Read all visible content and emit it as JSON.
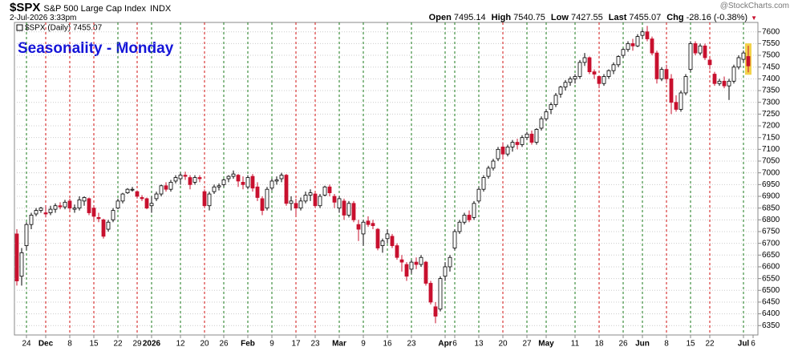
{
  "header": {
    "symbol": "$SPX",
    "name": "S&P 500 Large Cap Index",
    "exchange": "INDX",
    "date": "2-Jul-2026 3:33pm",
    "quote": [
      {
        "label": "Open",
        "value": "7495.14"
      },
      {
        "label": "High",
        "value": "7540.75"
      },
      {
        "label": "Low",
        "value": "7427.55"
      },
      {
        "label": "Last",
        "value": "7455.07"
      },
      {
        "label": "Chg",
        "value": "-28.16 (-0.38%)"
      }
    ],
    "watermark": "@StockCharts.com"
  },
  "chart_data": {
    "type": "candlestick",
    "legend": "$SPX (Daily) 7455.07",
    "annotation": "Seasonality - Monday",
    "up_color": "#ffffff",
    "down_color": "#c8102e",
    "up_line_color": "#1a7a1a",
    "down_line_color": "#d01010",
    "highlight_color": "#f2d24a",
    "grid": true,
    "ylim": [
      6310,
      7640
    ],
    "yticks": [
      6350,
      6400,
      6450,
      6500,
      6550,
      6600,
      6650,
      6700,
      6750,
      6800,
      6850,
      6900,
      6950,
      7000,
      7050,
      7100,
      7150,
      7200,
      7250,
      7300,
      7350,
      7400,
      7450,
      7500,
      7550,
      7600
    ],
    "categories": [
      null,
      null,
      "24",
      null,
      null,
      null,
      "Dec",
      null,
      null,
      null,
      null,
      "8",
      null,
      null,
      null,
      null,
      "15",
      null,
      null,
      null,
      null,
      "22",
      null,
      null,
      null,
      "29",
      null,
      null,
      "2026",
      null,
      null,
      null,
      null,
      null,
      "12",
      null,
      null,
      null,
      null,
      "20",
      null,
      null,
      null,
      "26",
      null,
      null,
      null,
      null,
      "Feb",
      null,
      null,
      null,
      null,
      "9",
      null,
      null,
      null,
      null,
      "17",
      null,
      null,
      null,
      "23",
      null,
      null,
      null,
      null,
      "Mar",
      null,
      null,
      null,
      null,
      "9",
      null,
      null,
      null,
      null,
      "16",
      null,
      null,
      null,
      null,
      "23",
      null,
      null,
      null,
      null,
      null,
      null,
      "Apr",
      null,
      "6",
      null,
      null,
      null,
      null,
      "13",
      null,
      null,
      null,
      null,
      "20",
      null,
      null,
      null,
      null,
      "27",
      null,
      null,
      null,
      "May",
      null,
      null,
      null,
      null,
      null,
      "11",
      null,
      null,
      null,
      null,
      "18",
      null,
      null,
      null,
      null,
      "26",
      null,
      null,
      null,
      "Jun",
      null,
      null,
      null,
      null,
      "8",
      null,
      null,
      null,
      null,
      "15",
      null,
      null,
      null,
      "22",
      null,
      null,
      null,
      null,
      null,
      null,
      "Jul",
      null,
      "6"
    ],
    "open": [
      6740,
      6560,
      6690,
      6780,
      6825,
      6840,
      6830,
      6830,
      6845,
      6860,
      6855,
      6880,
      6845,
      6850,
      6880,
      6890,
      6850,
      6810,
      6800,
      6760,
      6800,
      6850,
      6880,
      6915,
      6930,
      6920,
      6895,
      6890,
      6860,
      6890,
      6910,
      6945,
      6930,
      6965,
      6975,
      6990,
      6980,
      6960,
      6980,
      6920,
      6860,
      6920,
      6940,
      6950,
      6975,
      6985,
      6990,
      6960,
      6940,
      6985,
      6940,
      6890,
      6850,
      6935,
      6965,
      6975,
      6990,
      6870,
      6870,
      6850,
      6880,
      6905,
      6910,
      6860,
      6905,
      6940,
      6900,
      6850,
      6880,
      6820,
      6870,
      6780,
      6740,
      6795,
      6785,
      6760,
      6690,
      6720,
      6730,
      6690,
      6630,
      6610,
      6590,
      6620,
      6610,
      6620,
      6530,
      6430,
      6420,
      6560,
      6600,
      6680,
      6750,
      6790,
      6820,
      6810,
      6880,
      6930,
      6985,
      7020,
      7060,
      7110,
      7080,
      7110,
      7130,
      7120,
      7150,
      7165,
      7130,
      7190,
      7230,
      7270,
      7290,
      7335,
      7365,
      7385,
      7400,
      7410,
      7470,
      7490,
      7430,
      7410,
      7380,
      7410,
      7435,
      7460,
      7500,
      7525,
      7550,
      7540,
      7585,
      7600,
      7570,
      7510,
      7400,
      7440,
      7400,
      7300,
      7270,
      7340,
      7440,
      7550,
      7510,
      7540,
      7480,
      7420,
      7380,
      7390,
      7370,
      7390,
      7450,
      7483,
      7495.14,
      null
    ],
    "high": [
      6760,
      6680,
      6790,
      6830,
      6850,
      6855,
      6860,
      6860,
      6870,
      6875,
      6885,
      6890,
      6865,
      6900,
      6900,
      6895,
      6860,
      6830,
      6805,
      6800,
      6850,
      6890,
      6915,
      6935,
      6940,
      6925,
      6905,
      6895,
      6900,
      6920,
      6950,
      6960,
      6970,
      6990,
      7000,
      7005,
      6990,
      6990,
      6990,
      6930,
      6920,
      6950,
      6955,
      6975,
      6990,
      7010,
      6995,
      6985,
      6990,
      6995,
      6960,
      6900,
      6940,
      6975,
      6985,
      7000,
      6995,
      6900,
      6890,
      6895,
      6920,
      6930,
      6915,
      6910,
      6945,
      6950,
      6910,
      6900,
      6890,
      6880,
      6880,
      6800,
      6800,
      6815,
      6800,
      6765,
      6720,
      6760,
      6740,
      6700,
      6650,
      6620,
      6630,
      6640,
      6650,
      6625,
      6540,
      6450,
      6560,
      6620,
      6650,
      6760,
      6800,
      6830,
      6840,
      6880,
      6940,
      6990,
      7030,
      7060,
      7110,
      7130,
      7120,
      7140,
      7145,
      7160,
      7175,
      7180,
      7190,
      7240,
      7270,
      7300,
      7340,
      7370,
      7395,
      7410,
      7420,
      7480,
      7510,
      7495,
      7440,
      7415,
      7420,
      7440,
      7470,
      7500,
      7530,
      7560,
      7570,
      7590,
      7610,
      7625,
      7580,
      7520,
      7450,
      7460,
      7420,
      7330,
      7350,
      7420,
      7560,
      7560,
      7550,
      7550,
      7490,
      7430,
      7400,
      7410,
      7400,
      7460,
      7500,
      7520,
      7540.75,
      null
    ],
    "low": [
      6520,
      6520,
      6670,
      6760,
      6815,
      6830,
      6810,
      6820,
      6830,
      6845,
      6845,
      6840,
      6830,
      6840,
      6860,
      6820,
      6800,
      6790,
      6720,
      6750,
      6790,
      6845,
      6870,
      6910,
      6920,
      6890,
      6880,
      6845,
      6830,
      6880,
      6900,
      6920,
      6920,
      6955,
      6950,
      6970,
      6930,
      6950,
      6960,
      6850,
      6840,
      6910,
      6925,
      6940,
      6960,
      6975,
      6940,
      6930,
      6930,
      6920,
      6880,
      6820,
      6840,
      6925,
      6950,
      6960,
      6860,
      6840,
      6820,
      6840,
      6870,
      6880,
      6850,
      6850,
      6900,
      6900,
      6850,
      6830,
      6800,
      6810,
      6790,
      6710,
      6690,
      6770,
      6760,
      6670,
      6660,
      6700,
      6680,
      6630,
      6580,
      6540,
      6570,
      6590,
      6600,
      6520,
      6440,
      6360,
      6410,
      6540,
      6580,
      6670,
      6740,
      6780,
      6790,
      6800,
      6870,
      6920,
      6975,
      7010,
      7050,
      7060,
      7070,
      7090,
      7100,
      7110,
      7140,
      7120,
      7120,
      7180,
      7220,
      7250,
      7280,
      7320,
      7350,
      7370,
      7380,
      7400,
      7455,
      7420,
      7400,
      7360,
      7370,
      7400,
      7420,
      7450,
      7490,
      7515,
      7520,
      7535,
      7570,
      7560,
      7500,
      7380,
      7390,
      7380,
      7250,
      7260,
      7260,
      7330,
      7430,
      7500,
      7500,
      7480,
      7440,
      7370,
      7370,
      7360,
      7310,
      7380,
      7440,
      7470,
      7427.55,
      null
    ],
    "close": [
      6540,
      6660,
      6780,
      6820,
      6840,
      6850,
      6825,
      6845,
      6860,
      6855,
      6875,
      6850,
      6850,
      6885,
      6895,
      6830,
      6815,
      6805,
      6730,
      6790,
      6840,
      6880,
      6910,
      6930,
      6930,
      6900,
      6890,
      6850,
      6870,
      6910,
      6945,
      6930,
      6960,
      6980,
      6990,
      6985,
      6950,
      6980,
      6975,
      6860,
      6910,
      6940,
      6945,
      6970,
      6985,
      6995,
      6965,
      6950,
      6980,
      6935,
      6895,
      6840,
      6930,
      6965,
      6970,
      6990,
      6870,
      6880,
      6850,
      6880,
      6905,
      6915,
      6860,
      6900,
      6940,
      6915,
      6875,
      6890,
      6820,
      6870,
      6800,
      6760,
      6790,
      6780,
      6775,
      6680,
      6710,
      6740,
      6690,
      6640,
      6620,
      6560,
      6620,
      6610,
      6640,
      6530,
      6450,
      6390,
      6550,
      6600,
      6640,
      6750,
      6790,
      6820,
      6800,
      6870,
      6930,
      6980,
      7020,
      7050,
      7100,
      7080,
      7110,
      7130,
      7120,
      7150,
      7165,
      7130,
      7185,
      7230,
      7260,
      7290,
      7330,
      7365,
      7385,
      7400,
      7410,
      7470,
      7490,
      7430,
      7420,
      7380,
      7410,
      7435,
      7460,
      7495,
      7525,
      7550,
      7540,
      7580,
      7600,
      7570,
      7510,
      7400,
      7440,
      7400,
      7300,
      7270,
      7340,
      7410,
      7550,
      7510,
      7540,
      7490,
      7460,
      7380,
      7390,
      7370,
      7390,
      7450,
      7490,
      7510,
      7455.07,
      null
    ]
  }
}
